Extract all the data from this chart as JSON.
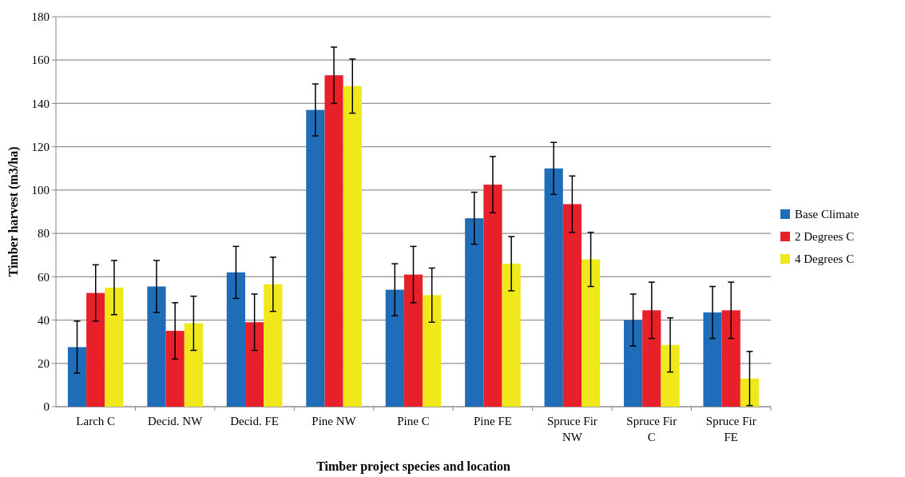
{
  "chart_data": {
    "type": "bar",
    "xlabel": "Timber project species and location",
    "ylabel": "Timber harvest (m3/ha)",
    "categories": [
      "Larch C",
      "Decid. NW",
      "Decid. FE",
      "Pine NW",
      "Pine C",
      "Pine FE",
      "Spruce Fir NW",
      "Spruce Fir C",
      "Spruce Fir FE"
    ],
    "series": [
      {
        "name": "Base Climate",
        "color": "#1f6cb8",
        "values": [
          27.5,
          55.5,
          62,
          137,
          54,
          87,
          110,
          40,
          43.5
        ],
        "errors": [
          12,
          12,
          12,
          12,
          12,
          12,
          12,
          12,
          12
        ]
      },
      {
        "name": "2 Degrees C",
        "color": "#e8202a",
        "values": [
          52.5,
          35,
          39,
          153,
          61,
          102.5,
          93.5,
          44.5,
          44.5
        ],
        "errors": [
          13,
          13,
          13,
          13,
          13,
          13,
          13,
          13,
          13
        ]
      },
      {
        "name": "4 Degrees C",
        "color": "#f0e81a",
        "values": [
          55,
          38.5,
          56.5,
          148,
          51.5,
          66,
          68,
          28.5,
          13
        ],
        "errors": [
          12.5,
          12.5,
          12.5,
          12.5,
          12.5,
          12.5,
          12.5,
          12.5,
          12.5
        ]
      }
    ],
    "ylim": [
      0,
      180
    ],
    "yticks": [
      0,
      20,
      40,
      60,
      80,
      100,
      120,
      140,
      160,
      180
    ],
    "grid": "y",
    "legend": "right"
  }
}
